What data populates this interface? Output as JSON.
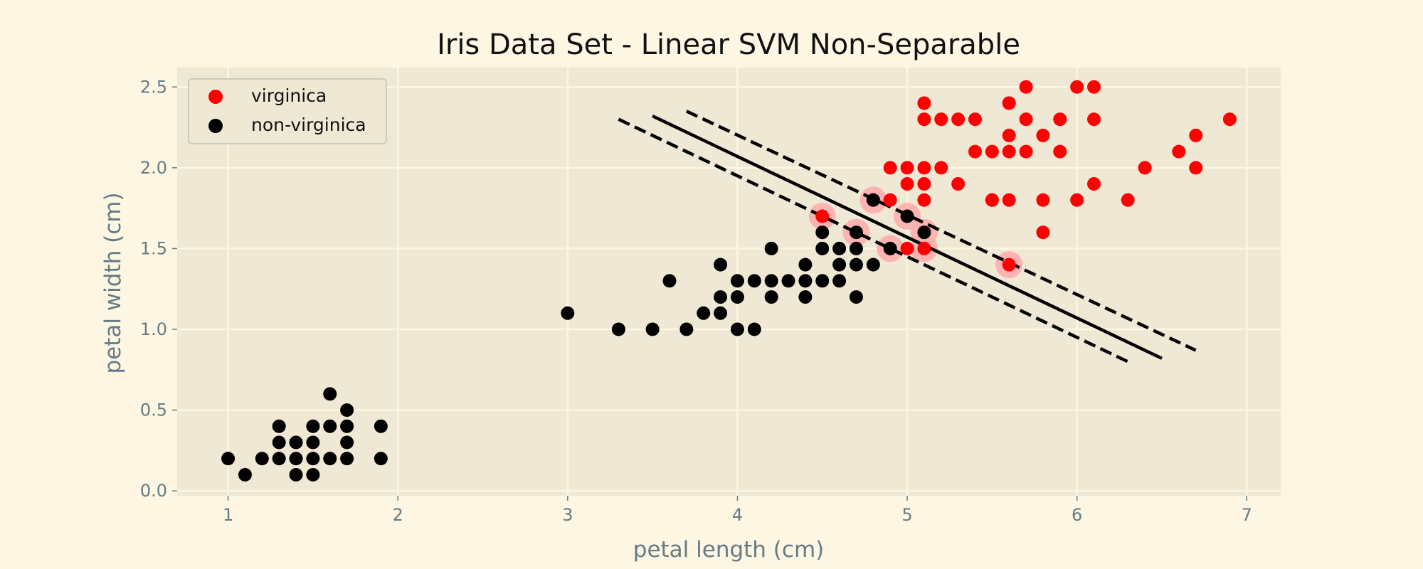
{
  "chart_data": {
    "type": "scatter",
    "title": "Iris Data Set - Linear SVM Non-Separable",
    "xlabel": "petal length (cm)",
    "ylabel": "petal width (cm)",
    "xlim": [
      0.7,
      7.2
    ],
    "ylim": [
      -0.03,
      2.62
    ],
    "x_ticks": [
      1,
      2,
      3,
      4,
      5,
      6,
      7
    ],
    "x_tick_labels": [
      "1",
      "2",
      "3",
      "4",
      "5",
      "6",
      "7"
    ],
    "y_ticks": [
      0.0,
      0.5,
      1.0,
      1.5,
      2.0,
      2.5
    ],
    "y_tick_labels": [
      "0.0",
      "0.5",
      "1.0",
      "1.5",
      "2.0",
      "2.5"
    ],
    "grid": true,
    "legend_position": "top-left",
    "colors": {
      "figure_background": "#fdf6e3",
      "axes_background": "#eee8d5",
      "grid": "#fdf6e3",
      "virginica": "#ff0000",
      "non_virginica": "#000000",
      "support_vector_halo": "#ffaaaa",
      "boundary": "#000000"
    },
    "series": [
      {
        "name": "virginica",
        "color": "#ff0000",
        "points": [
          [
            6.0,
            2.5
          ],
          [
            5.1,
            1.9
          ],
          [
            5.9,
            2.1
          ],
          [
            5.6,
            1.8
          ],
          [
            5.8,
            2.2
          ],
          [
            6.6,
            2.1
          ],
          [
            4.5,
            1.7
          ],
          [
            6.3,
            1.8
          ],
          [
            5.8,
            1.8
          ],
          [
            6.1,
            2.5
          ],
          [
            5.1,
            2.0
          ],
          [
            5.3,
            1.9
          ],
          [
            5.5,
            2.1
          ],
          [
            5.0,
            2.0
          ],
          [
            5.1,
            2.4
          ],
          [
            5.3,
            2.3
          ],
          [
            5.5,
            1.8
          ],
          [
            6.7,
            2.2
          ],
          [
            6.9,
            2.3
          ],
          [
            5.0,
            1.5
          ],
          [
            5.7,
            2.3
          ],
          [
            4.9,
            2.0
          ],
          [
            6.7,
            2.0
          ],
          [
            4.9,
            1.8
          ],
          [
            5.7,
            2.1
          ],
          [
            6.0,
            1.8
          ],
          [
            4.8,
            1.8
          ],
          [
            5.6,
            2.1
          ],
          [
            5.8,
            1.6
          ],
          [
            6.1,
            1.9
          ],
          [
            6.4,
            2.0
          ],
          [
            5.6,
            2.2
          ],
          [
            5.1,
            1.5
          ],
          [
            5.6,
            1.4
          ],
          [
            6.1,
            2.3
          ],
          [
            5.6,
            2.4
          ],
          [
            5.5,
            1.8
          ],
          [
            5.4,
            2.1
          ],
          [
            5.6,
            2.4
          ],
          [
            5.1,
            2.3
          ],
          [
            5.9,
            2.3
          ],
          [
            5.7,
            2.5
          ],
          [
            5.2,
            2.3
          ],
          [
            5.0,
            1.9
          ],
          [
            5.2,
            2.0
          ],
          [
            5.4,
            2.3
          ],
          [
            5.1,
            1.8
          ]
        ]
      },
      {
        "name": "non-virginica",
        "color": "#000000",
        "points": [
          [
            1.0,
            0.2
          ],
          [
            1.1,
            0.1
          ],
          [
            1.2,
            0.2
          ],
          [
            1.3,
            0.2
          ],
          [
            1.3,
            0.3
          ],
          [
            1.3,
            0.4
          ],
          [
            1.4,
            0.1
          ],
          [
            1.4,
            0.2
          ],
          [
            1.4,
            0.3
          ],
          [
            1.5,
            0.1
          ],
          [
            1.5,
            0.2
          ],
          [
            1.5,
            0.3
          ],
          [
            1.5,
            0.4
          ],
          [
            1.6,
            0.2
          ],
          [
            1.6,
            0.4
          ],
          [
            1.6,
            0.6
          ],
          [
            1.7,
            0.2
          ],
          [
            1.7,
            0.3
          ],
          [
            1.7,
            0.4
          ],
          [
            1.7,
            0.5
          ],
          [
            1.9,
            0.2
          ],
          [
            1.9,
            0.4
          ],
          [
            3.0,
            1.1
          ],
          [
            3.3,
            1.0
          ],
          [
            3.5,
            1.0
          ],
          [
            3.6,
            1.3
          ],
          [
            3.7,
            1.0
          ],
          [
            3.8,
            1.1
          ],
          [
            3.9,
            1.1
          ],
          [
            3.9,
            1.2
          ],
          [
            3.9,
            1.4
          ],
          [
            4.0,
            1.0
          ],
          [
            4.0,
            1.2
          ],
          [
            4.0,
            1.3
          ],
          [
            4.1,
            1.0
          ],
          [
            4.1,
            1.3
          ],
          [
            4.2,
            1.2
          ],
          [
            4.2,
            1.3
          ],
          [
            4.2,
            1.5
          ],
          [
            4.3,
            1.3
          ],
          [
            4.4,
            1.2
          ],
          [
            4.4,
            1.3
          ],
          [
            4.4,
            1.4
          ],
          [
            4.5,
            1.3
          ],
          [
            4.5,
            1.5
          ],
          [
            4.5,
            1.6
          ],
          [
            4.6,
            1.3
          ],
          [
            4.6,
            1.4
          ],
          [
            4.6,
            1.5
          ],
          [
            4.7,
            1.2
          ],
          [
            4.7,
            1.4
          ],
          [
            4.7,
            1.5
          ],
          [
            4.7,
            1.6
          ],
          [
            4.8,
            1.4
          ],
          [
            4.8,
            1.8
          ],
          [
            4.9,
            1.5
          ],
          [
            5.0,
            1.7
          ],
          [
            5.1,
            1.6
          ]
        ]
      }
    ],
    "support_vectors": [
      [
        4.5,
        1.7
      ],
      [
        4.7,
        1.6
      ],
      [
        4.8,
        1.8
      ],
      [
        4.9,
        1.5
      ],
      [
        5.0,
        1.7
      ],
      [
        5.1,
        1.6
      ],
      [
        5.1,
        1.5
      ],
      [
        5.6,
        1.4
      ]
    ],
    "decision_boundary": {
      "solid": [
        [
          3.5,
          2.32
        ],
        [
          6.5,
          0.82
        ]
      ],
      "upper_margin": [
        [
          3.7,
          2.35
        ],
        [
          6.7,
          0.87
        ]
      ],
      "lower_margin": [
        [
          3.3,
          2.3
        ],
        [
          6.3,
          0.8
        ]
      ]
    }
  }
}
